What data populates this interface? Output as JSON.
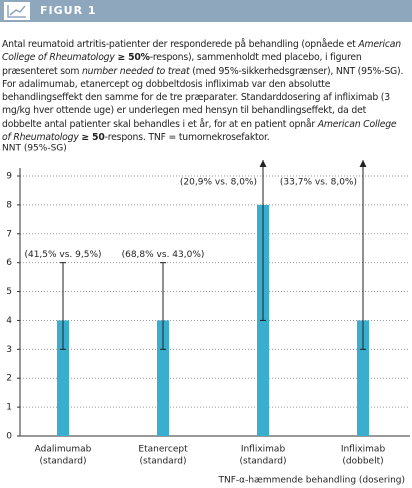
{
  "figure_label": "FIGUR 1",
  "caption": [
    {
      "text": "Antal reumatoid artritis-patienter der responderede på behandling (opnåede et ",
      "style": "normal"
    },
    {
      "text": "American College of Rheumatology",
      "style": "italic"
    },
    {
      "text": " ",
      "style": "normal"
    },
    {
      "text": "≥ 50%",
      "style": "bold"
    },
    {
      "text": "-respons), sammenholdt med placebo, i figuren præsenteret som ",
      "style": "normal"
    },
    {
      "text": "number needed to treat",
      "style": "italic"
    },
    {
      "text": " (med 95%-sikkerhedsgrænser), NNT (95%-SG). For adalimumab, etanercept og dobbeltdosis infliximab var den absolutte behandlingseffekt den samme for de tre præparater. Standarddosering af infliximab (3 mg/kg hver ottende uge) er underlegen med hensyn til behandlingseffekt, da det dobbelte antal patienter skal behandles i et år, for at en patient opnår ",
      "style": "normal"
    },
    {
      "text": "American College of Rheumatology",
      "style": "italic"
    },
    {
      "text": " ",
      "style": "normal"
    },
    {
      "text": "≥ 50",
      "style": "bold"
    },
    {
      "text": "-respons. TNF = tumornekrosefaktor.",
      "style": "normal"
    }
  ],
  "chart_data": {
    "type": "bar",
    "y_label": "NNT (95%-SG)",
    "x_label": "TNF-α-hæmmende behandling (dosering)",
    "categories": [
      [
        "Adalimumab",
        "(standard)"
      ],
      [
        "Etanercept",
        "(standard)"
      ],
      [
        "Infliximab",
        "(standard)"
      ],
      [
        "Infliximab",
        "(dobbelt)"
      ]
    ],
    "values": [
      4,
      4,
      8,
      4
    ],
    "lower": [
      3,
      3,
      4,
      3
    ],
    "upper": [
      6,
      6,
      null,
      null
    ],
    "annotations": [
      "(41,5% vs. 9,5%)",
      "(68,8% vs. 43,0%)",
      "(20,9% vs. 8,0%)",
      "(33,7% vs. 8,0%)"
    ],
    "color": "#3aaecf",
    "ylim": [
      0,
      9
    ],
    "yticks": [
      0,
      1,
      2,
      3,
      4,
      5,
      6,
      7,
      8,
      9
    ],
    "grid": true
  }
}
